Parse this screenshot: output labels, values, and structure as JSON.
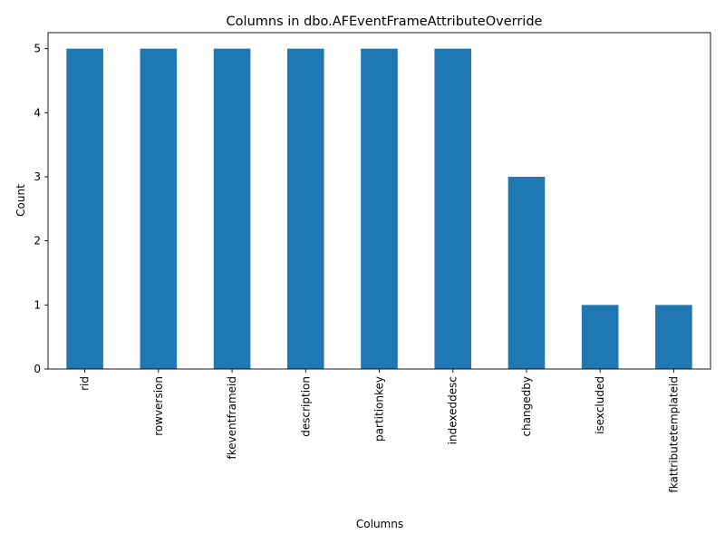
{
  "chart_data": {
    "type": "bar",
    "title": "Columns in dbo.AFEventFrameAttributeOverride",
    "xlabel": "Columns",
    "ylabel": "Count",
    "categories": [
      "rid",
      "rowversion",
      "fkeventframeid",
      "description",
      "partitionkey",
      "indexeddesc",
      "changedby",
      "isexcluded",
      "fkattributetemplateid"
    ],
    "values": [
      5,
      5,
      5,
      5,
      5,
      5,
      3,
      1,
      1
    ],
    "ylim": [
      0,
      5.25
    ],
    "yticks": [
      0,
      1,
      2,
      3,
      4,
      5
    ],
    "grid": false,
    "legend": "none",
    "bar_color": "#1f77b4"
  }
}
